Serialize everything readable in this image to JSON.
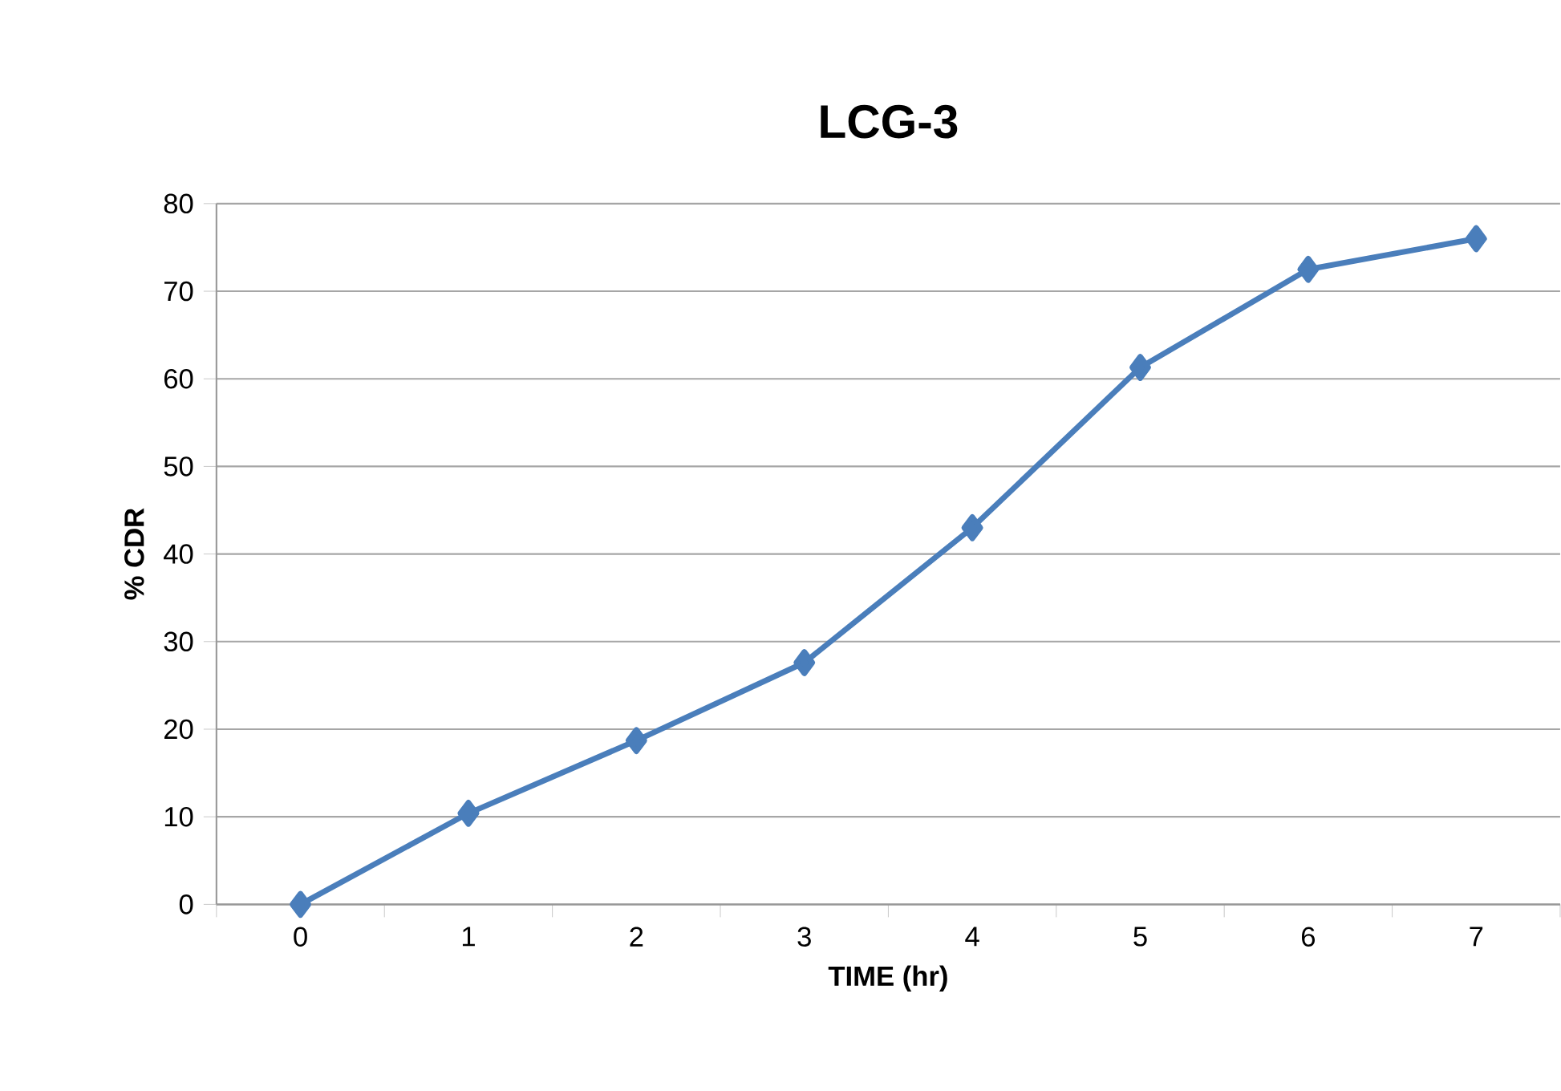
{
  "chart_data": {
    "type": "line",
    "title": "LCG-3",
    "xlabel": "TIME (hr)",
    "ylabel": "% CDR",
    "categories": [
      "0",
      "1",
      "2",
      "3",
      "4",
      "5",
      "6",
      "7"
    ],
    "series": [
      {
        "color": "#4a7ebb",
        "values": [
          0,
          10.4,
          18.7,
          27.6,
          43.0,
          61.3,
          72.5,
          76.0
        ]
      }
    ],
    "ylim": [
      0,
      80
    ],
    "yticks": [
      0,
      10,
      20,
      30,
      40,
      50,
      60,
      70,
      80
    ],
    "grid": "y",
    "marker": "diamond",
    "line_style": "solid"
  }
}
